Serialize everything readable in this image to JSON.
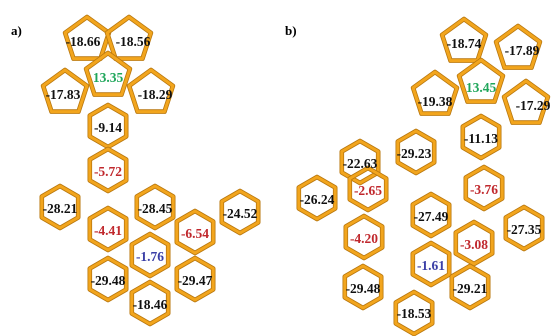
{
  "colors": {
    "bond": "#F2A51D",
    "bond_shadow": "#B8770E",
    "text": "#111111",
    "negative_highlight": "#C0282D",
    "positive": "#1FA65A",
    "special": "#3B3FA6"
  },
  "panels": [
    {
      "label": "a)",
      "rings": [
        {
          "value": "-18.66",
          "color": "text"
        },
        {
          "value": "-18.56",
          "color": "text"
        },
        {
          "value": "13.35",
          "color": "positive"
        },
        {
          "value": "-17.83",
          "color": "text"
        },
        {
          "value": "-18.29",
          "color": "text"
        },
        {
          "value": "-9.14",
          "color": "text"
        },
        {
          "value": "-5.72",
          "color": "negative_highlight"
        },
        {
          "value": "-28.21",
          "color": "text"
        },
        {
          "value": "-28.45",
          "color": "text"
        },
        {
          "value": "-24.52",
          "color": "text"
        },
        {
          "value": "-4.41",
          "color": "negative_highlight"
        },
        {
          "value": "-6.54",
          "color": "negative_highlight"
        },
        {
          "value": "-1.76",
          "color": "special"
        },
        {
          "value": "-29.48",
          "color": "text"
        },
        {
          "value": "-29.47",
          "color": "text"
        },
        {
          "value": "-18.46",
          "color": "text"
        }
      ]
    },
    {
      "label": "b)",
      "rings": [
        {
          "value": "-18.74",
          "color": "text"
        },
        {
          "value": "-17.89",
          "color": "text"
        },
        {
          "value": "-19.38",
          "color": "text"
        },
        {
          "value": "13.45",
          "color": "positive"
        },
        {
          "value": "-17.29",
          "color": "text"
        },
        {
          "value": "-11.13",
          "color": "text"
        },
        {
          "value": "-22.63",
          "color": "text"
        },
        {
          "value": "-29.23",
          "color": "text"
        },
        {
          "value": "-26.24",
          "color": "text"
        },
        {
          "value": "-2.65",
          "color": "negative_highlight"
        },
        {
          "value": "-27.49",
          "color": "text"
        },
        {
          "value": "-3.76",
          "color": "negative_highlight"
        },
        {
          "value": "-4.20",
          "color": "negative_highlight"
        },
        {
          "value": "-3.08",
          "color": "negative_highlight"
        },
        {
          "value": "-27.35",
          "color": "text"
        },
        {
          "value": "-1.61",
          "color": "special"
        },
        {
          "value": "-29.48",
          "color": "text"
        },
        {
          "value": "-29.21",
          "color": "text"
        },
        {
          "value": "-18.53",
          "color": "text"
        }
      ]
    }
  ]
}
